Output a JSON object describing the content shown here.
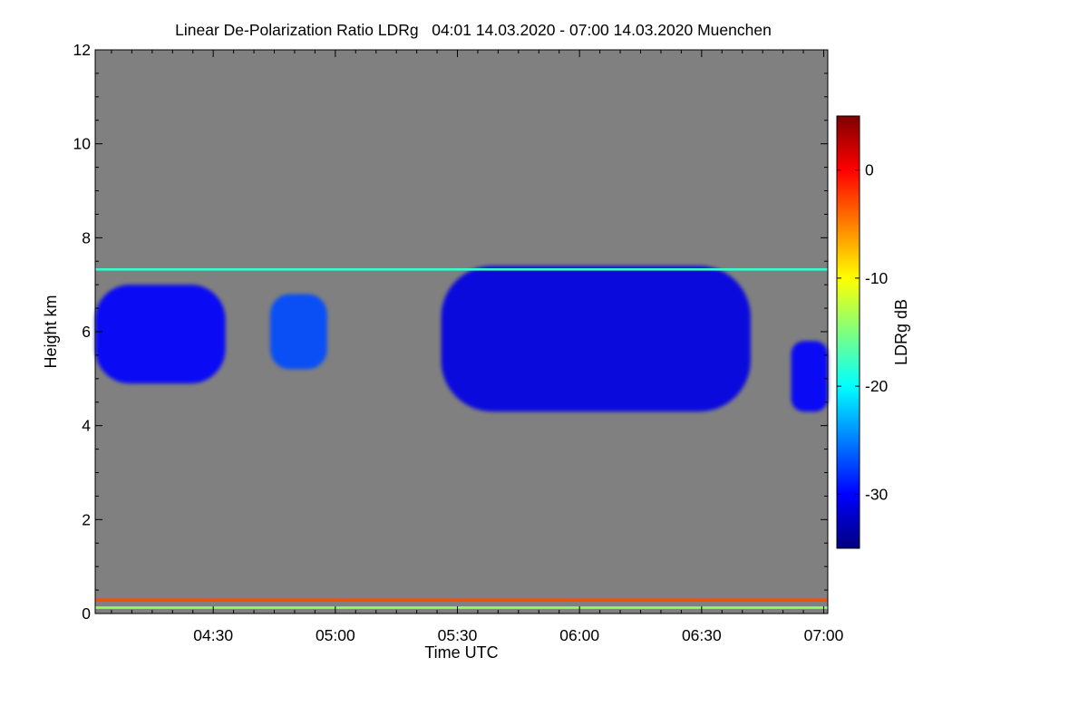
{
  "chart_data": {
    "type": "heatmap",
    "title": "Linear De-Polarization Ratio LDRg   04:01 14.03.2020 - 07:00 14.03.2020 Muenchen",
    "xlabel": "Time UTC",
    "ylabel": "Height km",
    "xlim_minutes": [
      241,
      421
    ],
    "ylim": [
      0,
      12
    ],
    "x_ticks": [
      {
        "label": "04:30",
        "minutes": 270
      },
      {
        "label": "05:00",
        "minutes": 300
      },
      {
        "label": "05:30",
        "minutes": 330
      },
      {
        "label": "06:00",
        "minutes": 360
      },
      {
        "label": "06:30",
        "minutes": 390
      },
      {
        "label": "07:00",
        "minutes": 420
      }
    ],
    "y_ticks": [
      0,
      2,
      4,
      6,
      8,
      10,
      12
    ],
    "colorbar": {
      "label": "LDRg dB",
      "range": [
        -35,
        5
      ],
      "ticks": [
        0,
        -10,
        -20,
        -30
      ],
      "colormap": [
        "#00007f",
        "#0000ff",
        "#007fff",
        "#00ffff",
        "#7fff7f",
        "#ffff00",
        "#ff7f00",
        "#ff0000",
        "#7f0000"
      ]
    },
    "background_color": "#808080",
    "features": [
      {
        "name": "cloud-layer-1",
        "t_start": 241,
        "t_end": 273,
        "h_bottom": 4.9,
        "h_top": 7.0,
        "ldr_db": -30
      },
      {
        "name": "cloud-layer-2",
        "t_start": 284,
        "t_end": 298,
        "h_bottom": 5.2,
        "h_top": 6.8,
        "ldr_db": -27
      },
      {
        "name": "cloud-layer-3",
        "t_start": 326,
        "t_end": 402,
        "h_bottom": 4.3,
        "h_top": 7.4,
        "ldr_db": -31
      },
      {
        "name": "cloud-layer-4",
        "t_start": 412,
        "t_end": 421,
        "h_bottom": 4.3,
        "h_top": 5.8,
        "ldr_db": -30
      },
      {
        "name": "top-band",
        "t_start": 241,
        "t_end": 421,
        "h_bottom": 7.3,
        "h_top": 7.35,
        "ldr_db": -18
      },
      {
        "name": "near-surface-band",
        "t_start": 241,
        "t_end": 421,
        "h_bottom": 0.25,
        "h_top": 0.32,
        "ldr_db": -3
      },
      {
        "name": "surface-band",
        "t_start": 241,
        "t_end": 421,
        "h_bottom": 0.1,
        "h_top": 0.15,
        "ldr_db": -14
      }
    ]
  }
}
